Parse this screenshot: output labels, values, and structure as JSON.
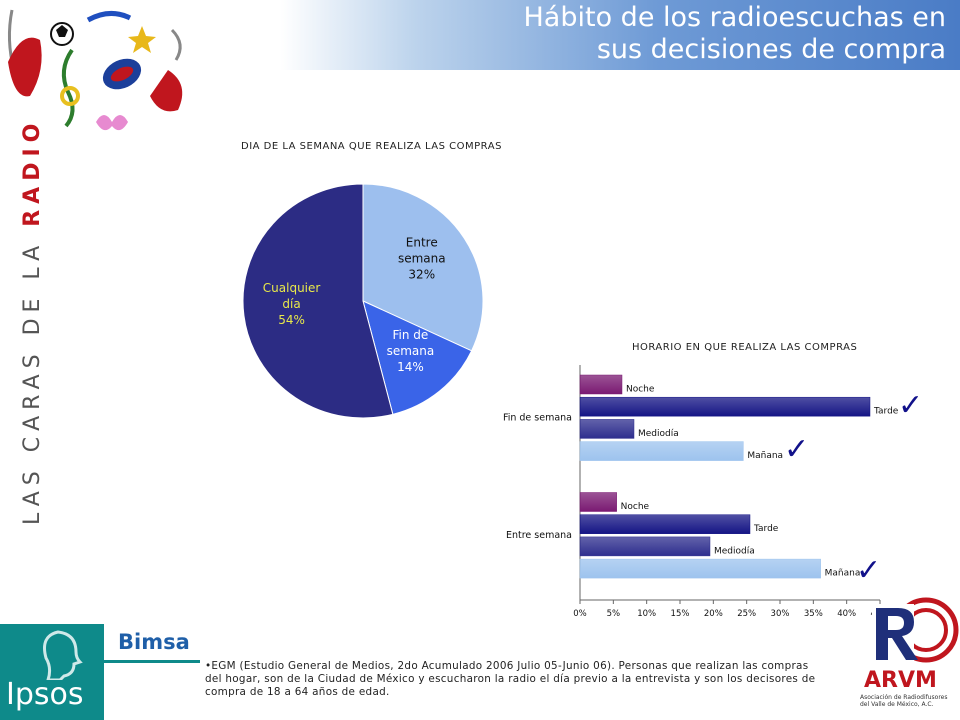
{
  "header": {
    "title_line1": "Hábito de los radioescuchas en",
    "title_line2": "sus decisiones de compra"
  },
  "brand": {
    "vertical_part1": "LAS CARAS DE LA ",
    "vertical_part2": "RADIO",
    "ipsos": "Ipsos",
    "bimsa": "Bimsa",
    "arvm": "ARVM",
    "arvm_sub": "Asociación de Radiodifusores del Valle de México, A.C."
  },
  "colors": {
    "accent_blue": "#4a7cc6",
    "radio_red": "#c0161e",
    "ipsos_teal": "#0e8a8a",
    "check_navy": "#11118a"
  },
  "footnote": "•EGM (Estudio General de Medios, 2do Acumulado 2006 Julio 05-Junio 06). Personas que realizan las compras del hogar, son de la Ciudad de México y escucharon la radio el día previo a la entrevista y son los decisores de compra de 18 a 64 años de edad.",
  "chart_data": [
    {
      "type": "pie",
      "title": "DIA DE LA SEMANA QUE REALIZA LAS COMPRAS",
      "slices": [
        {
          "label": "Entre semana",
          "label_lines": [
            "Entre",
            "semana",
            "32%"
          ],
          "value": 32,
          "color": "#9dbfee"
        },
        {
          "label": "Fin de semana",
          "label_lines": [
            "Fin de",
            "semana",
            "14%"
          ],
          "value": 14,
          "color": "#3a64e8"
        },
        {
          "label": "Cualquier día",
          "label_lines": [
            "Cualquier",
            "día",
            "54%"
          ],
          "value": 54,
          "color": "#2c2c84"
        }
      ]
    },
    {
      "type": "bar",
      "orientation": "horizontal",
      "title": "HORARIO EN QUE REALIZA LAS COMPRAS",
      "groups": [
        {
          "label": "Fin de semana",
          "bars": [
            {
              "label": "Noche",
              "value": 6.3,
              "color": "#7a1a72"
            },
            {
              "label": "Tarde",
              "value": 43.5,
              "color": "#151585"
            },
            {
              "label": "Mediodía",
              "value": 8.1,
              "color": "#2e2e8e"
            },
            {
              "label": "Mañana",
              "value": 24.5,
              "color": "#9dc3ee"
            }
          ]
        },
        {
          "label": "Entre semana",
          "bars": [
            {
              "label": "Noche",
              "value": 5.5,
              "color": "#7a1a72"
            },
            {
              "label": "Tarde",
              "value": 25.5,
              "color": "#151585"
            },
            {
              "label": "Mediodía",
              "value": 19.5,
              "color": "#2e2e8e"
            },
            {
              "label": "Mañana",
              "value": 36.1,
              "color": "#9dc3ee"
            }
          ]
        }
      ],
      "xlim": [
        0,
        45
      ],
      "xticks": [
        "0%",
        "5%",
        "10%",
        "15%",
        "20%",
        "25%",
        "30%",
        "35%",
        "40%",
        "45%"
      ],
      "check_marks": [
        "Fin de semana|Tarde",
        "Fin de semana|Mañana",
        "Entre semana|Mañana"
      ]
    }
  ]
}
